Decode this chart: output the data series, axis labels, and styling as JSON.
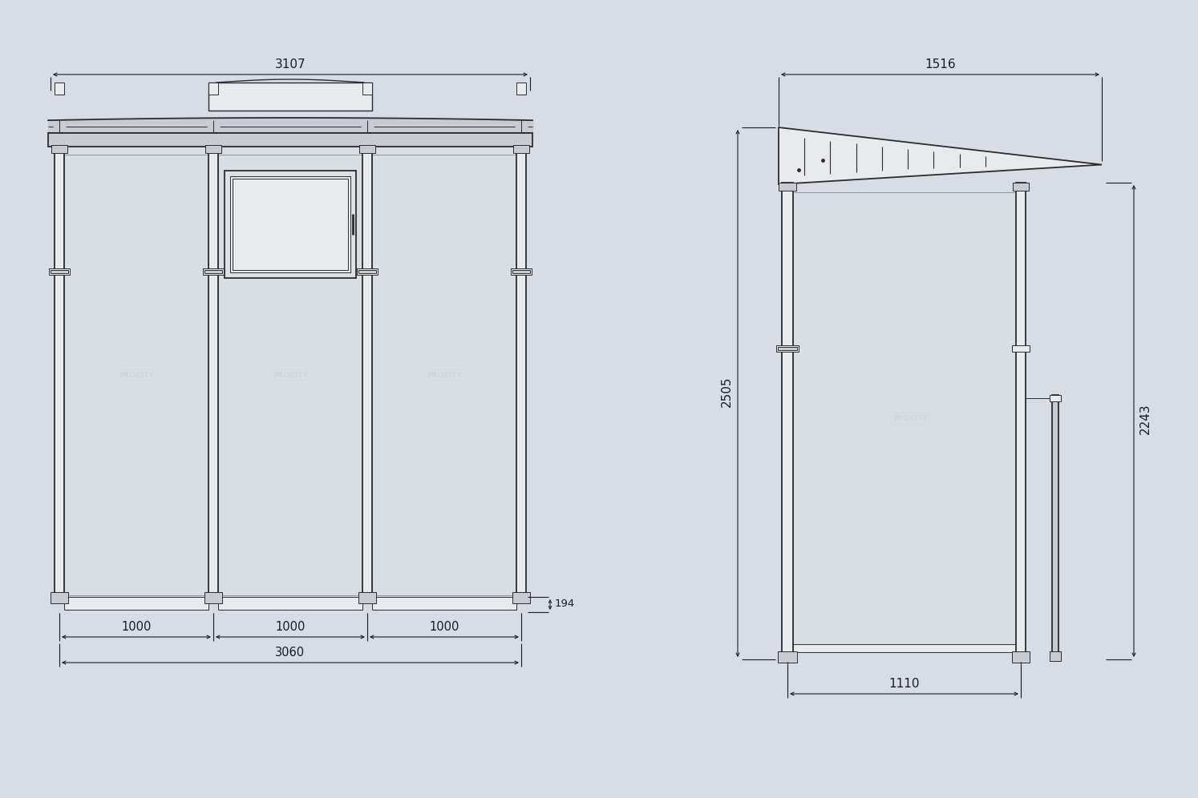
{
  "bg_color": "#d8dde5",
  "line_color": "#2c2c2c",
  "dim_color": "#1a1a2a",
  "light_fill": "#e8eaed",
  "mid_fill": "#c8ccd2",
  "roof_fill": "#d2d6db",
  "glass_fill": "#dde1e6",
  "watermark_color": "#c5c8cc",
  "fig_width": 14.94,
  "fig_height": 9.96,
  "procity_text": "PROCITY"
}
